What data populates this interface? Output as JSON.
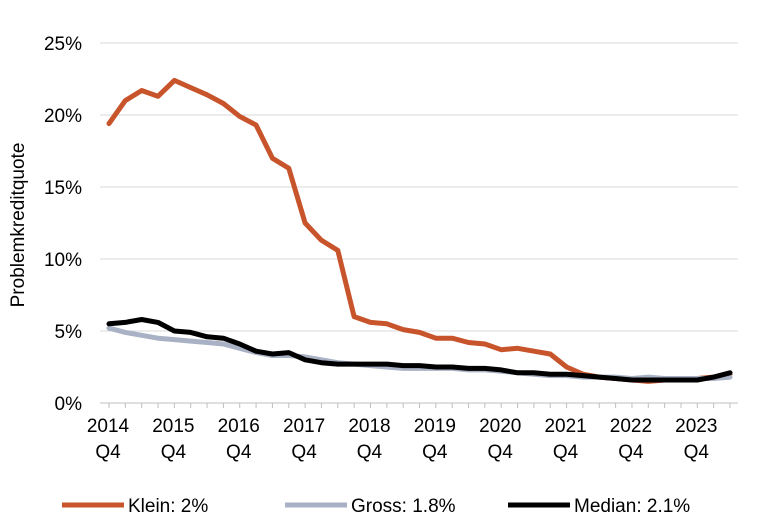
{
  "chart_data": {
    "type": "line",
    "title": "",
    "xlabel": "",
    "ylabel": "Problemkreditquote",
    "ylim": [
      0,
      25
    ],
    "yticks": [
      0,
      5,
      10,
      15,
      20,
      25
    ],
    "ytick_labels": [
      "0%",
      "5%",
      "10%",
      "15%",
      "20%",
      "25%"
    ],
    "grid": true,
    "legend_position": "bottom",
    "x": [
      2014.75,
      2015.0,
      2015.25,
      2015.5,
      2015.75,
      2016.0,
      2016.25,
      2016.5,
      2016.75,
      2017.0,
      2017.25,
      2017.5,
      2017.75,
      2018.0,
      2018.25,
      2018.5,
      2018.75,
      2019.0,
      2019.25,
      2019.5,
      2019.75,
      2020.0,
      2020.25,
      2020.5,
      2020.75,
      2021.0,
      2021.25,
      2021.5,
      2021.75,
      2022.0,
      2022.25,
      2022.5,
      2022.75,
      2023.0,
      2023.25,
      2023.5,
      2023.75,
      2024.0,
      2024.25
    ],
    "xticks": [
      {
        "x": 2014.75,
        "year": "2014",
        "quarter": "Q4"
      },
      {
        "x": 2015.75,
        "year": "2015",
        "quarter": "Q4"
      },
      {
        "x": 2016.75,
        "year": "2016",
        "quarter": "Q4"
      },
      {
        "x": 2017.75,
        "year": "2017",
        "quarter": "Q4"
      },
      {
        "x": 2018.75,
        "year": "2018",
        "quarter": "Q4"
      },
      {
        "x": 2019.75,
        "year": "2019",
        "quarter": "Q4"
      },
      {
        "x": 2020.75,
        "year": "2020",
        "quarter": "Q4"
      },
      {
        "x": 2021.75,
        "year": "2021",
        "quarter": "Q4"
      },
      {
        "x": 2022.75,
        "year": "2022",
        "quarter": "Q4"
      },
      {
        "x": 2023.75,
        "year": "2023",
        "quarter": "Q4"
      }
    ],
    "series": [
      {
        "name": "Klein: 2%",
        "color": "#C8542C",
        "values": [
          19.4,
          21.0,
          21.7,
          21.3,
          22.4,
          21.9,
          21.4,
          20.8,
          19.9,
          19.3,
          17.0,
          16.3,
          12.5,
          11.3,
          10.6,
          6.0,
          5.6,
          5.5,
          5.1,
          4.9,
          4.5,
          4.5,
          4.2,
          4.1,
          3.7,
          3.8,
          3.6,
          3.4,
          2.5,
          2.0,
          1.8,
          1.7,
          1.6,
          1.5,
          1.6,
          1.6,
          1.7,
          1.8,
          2.0
        ]
      },
      {
        "name": "Gross: 1.8%",
        "color": "#A9B2C4",
        "values": [
          5.2,
          4.9,
          4.7,
          4.5,
          4.4,
          4.3,
          4.2,
          4.1,
          3.8,
          3.5,
          3.3,
          3.3,
          3.2,
          3.0,
          2.8,
          2.7,
          2.6,
          2.5,
          2.4,
          2.4,
          2.4,
          2.4,
          2.3,
          2.3,
          2.2,
          2.1,
          2.0,
          1.9,
          1.9,
          1.8,
          1.8,
          1.8,
          1.7,
          1.8,
          1.7,
          1.7,
          1.7,
          1.7,
          1.8
        ]
      },
      {
        "name": "Median: 2.1%",
        "color": "#000000",
        "values": [
          5.5,
          5.6,
          5.8,
          5.6,
          5.0,
          4.9,
          4.6,
          4.5,
          4.1,
          3.6,
          3.4,
          3.5,
          3.0,
          2.8,
          2.7,
          2.7,
          2.7,
          2.7,
          2.6,
          2.6,
          2.5,
          2.5,
          2.4,
          2.4,
          2.3,
          2.1,
          2.1,
          2.0,
          2.0,
          1.9,
          1.8,
          1.7,
          1.6,
          1.6,
          1.6,
          1.6,
          1.6,
          1.8,
          2.1
        ]
      }
    ]
  }
}
